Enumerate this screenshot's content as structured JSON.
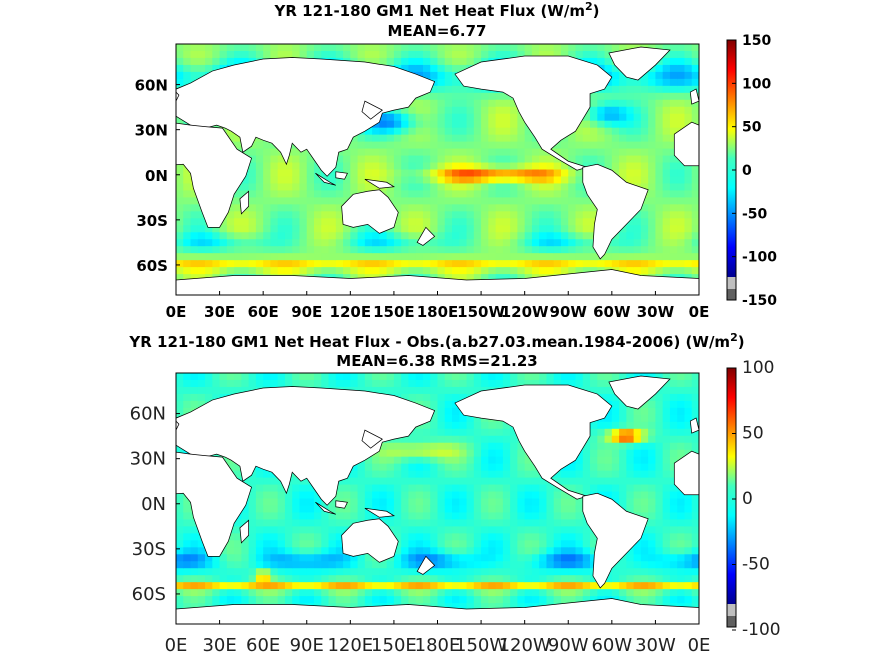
{
  "chart_data": [
    {
      "type": "heatmap",
      "title": "YR 121-180 GM1  Net Heat Flux (W/m",
      "title_superscript": "2",
      "title_suffix": ")",
      "subtitle": "MEAN=6.77",
      "x_ticks": [
        "0E",
        "30E",
        "60E",
        "90E",
        "120E",
        "150E",
        "180E",
        "150W",
        "120W",
        "90W",
        "60W",
        "30W",
        "0E"
      ],
      "y_ticks": [
        "60N",
        "30N",
        "0N",
        "30S",
        "60S"
      ],
      "colorbar": {
        "ticks": [
          "150",
          "100",
          "50",
          "0",
          "-50",
          "-100",
          "-150"
        ],
        "min": -150,
        "max": 150
      },
      "projection": "cylindrical, 0E to 360E, 80S to 87N",
      "colormap": "jet",
      "land_color": "#ffffff"
    },
    {
      "type": "heatmap",
      "title": "YR 121-180 GM1  Net Heat Flux - Obs.(a.b27.03.mean.1984-2006) (W/m",
      "title_superscript": "2",
      "title_suffix": ")",
      "subtitle": "MEAN=6.38 RMS=21.23",
      "x_ticks": [
        "0E",
        "30E",
        "60E",
        "90E",
        "120E",
        "150E",
        "180E",
        "150W",
        "120W",
        "90W",
        "60W",
        "30W",
        "0E"
      ],
      "y_ticks": [
        "60N",
        "30N",
        "0N",
        "30S",
        "60S"
      ],
      "colorbar": {
        "ticks": [
          "100",
          "50",
          "0",
          "-50",
          "-100"
        ],
        "min": -100,
        "max": 100
      },
      "projection": "cylindrical, 0E to 360E, 80S to 87N",
      "colormap": "jet",
      "land_color": "#ffffff"
    }
  ]
}
